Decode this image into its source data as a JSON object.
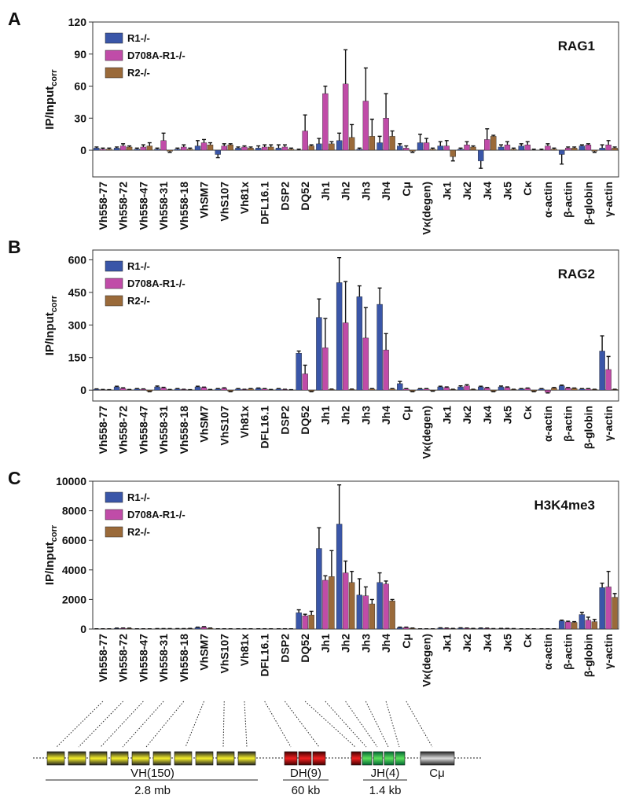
{
  "chart_data": [
    {
      "type": "bar",
      "panel": "A",
      "title": "RAG1",
      "ylabel": "IP/Input",
      "ylabel_sub": "corr",
      "categories": [
        "Vh558-77",
        "Vh558-72",
        "Vh558-47",
        "Vh558-31",
        "Vh558-18",
        "VhSM7",
        "VhS107",
        "Vh81x",
        "DFL16.1",
        "DSP2",
        "DQ52",
        "Jh1",
        "Jh2",
        "Jh3",
        "Jh4",
        "Cμ",
        "Vκ(degen)",
        "Jκ1",
        "Jκ2",
        "Jκ4",
        "Jκ5",
        "Cκ",
        "α-actin",
        "β-actin",
        "β-globin",
        "γ-actin"
      ],
      "series": [
        {
          "name": "R1-/-",
          "color": "#3a56a8",
          "values": [
            2,
            2,
            1,
            1,
            1,
            4,
            -4,
            2,
            2,
            2,
            0,
            6,
            9,
            1,
            7,
            4,
            7,
            4,
            1,
            -10,
            3,
            4,
            0,
            -4,
            4,
            2
          ],
          "errors": [
            1,
            1,
            1,
            1,
            1,
            5,
            3,
            1,
            2,
            3,
            1,
            5,
            7,
            1,
            6,
            2,
            8,
            4,
            1,
            7,
            2,
            2,
            1,
            9,
            1,
            3
          ]
        },
        {
          "name": "D708A-R1-/-",
          "color": "#c04ca8",
          "values": [
            1,
            4,
            3,
            9,
            3,
            7,
            4,
            3,
            3,
            3,
            18,
            53,
            62,
            46,
            30,
            2,
            7,
            4,
            5,
            10,
            5,
            5,
            4,
            2,
            5,
            5
          ],
          "errors": [
            1,
            2,
            2,
            7,
            2,
            3,
            2,
            1,
            2,
            2,
            15,
            7,
            32,
            31,
            23,
            2,
            4,
            5,
            3,
            10,
            3,
            3,
            2,
            1,
            1,
            4
          ]
        },
        {
          "name": "R2-/-",
          "color": "#9a6a3a",
          "values": [
            1,
            3,
            4,
            -1,
            1,
            5,
            5,
            2,
            3,
            1,
            4,
            6,
            12,
            13,
            13,
            -1,
            1,
            -6,
            3,
            13,
            1,
            0,
            1,
            2,
            -1,
            2
          ],
          "errors": [
            1,
            1,
            3,
            1,
            1,
            2,
            1,
            1,
            2,
            1,
            1,
            2,
            12,
            16,
            5,
            1,
            1,
            4,
            1,
            1,
            1,
            1,
            1,
            1,
            1,
            1
          ]
        }
      ],
      "ylim": [
        -25,
        120
      ],
      "yticks": [
        0,
        30,
        60,
        90,
        120
      ]
    },
    {
      "type": "bar",
      "panel": "B",
      "title": "RAG2",
      "ylabel": "IP/Input",
      "ylabel_sub": "corr",
      "categories": [
        "Vh558-77",
        "Vh558-72",
        "Vh558-47",
        "Vh558-31",
        "Vh558-18",
        "VhSM7",
        "VhS107",
        "Vh81x",
        "DFL16.1",
        "DSP2",
        "DQ52",
        "Jh1",
        "Jh2",
        "Jh3",
        "Jh4",
        "Cμ",
        "Vκ(degen)",
        "Jκ1",
        "Jκ2",
        "Jκ4",
        "Jκ5",
        "Cκ",
        "α-actin",
        "β-actin",
        "β-globin",
        "γ-actin"
      ],
      "series": [
        {
          "name": "R1-/-",
          "color": "#3a56a8",
          "values": [
            4,
            15,
            5,
            15,
            5,
            15,
            5,
            5,
            8,
            5,
            170,
            335,
            495,
            430,
            395,
            30,
            5,
            15,
            15,
            15,
            15,
            5,
            5,
            20,
            5,
            180
          ],
          "errors": [
            2,
            3,
            2,
            4,
            2,
            3,
            2,
            2,
            2,
            2,
            10,
            85,
            115,
            50,
            75,
            10,
            2,
            3,
            5,
            3,
            4,
            2,
            2,
            3,
            2,
            70
          ]
        },
        {
          "name": "D708A-R1-/-",
          "color": "#c04ca8",
          "values": [
            2,
            8,
            4,
            10,
            3,
            12,
            8,
            3,
            5,
            3,
            75,
            195,
            310,
            240,
            185,
            5,
            5,
            12,
            20,
            10,
            12,
            8,
            -10,
            10,
            5,
            95
          ],
          "errors": [
            1,
            3,
            2,
            3,
            1,
            2,
            3,
            1,
            2,
            1,
            40,
            135,
            190,
            140,
            75,
            2,
            2,
            3,
            5,
            2,
            3,
            2,
            3,
            2,
            2,
            60
          ]
        },
        {
          "name": "R2-/-",
          "color": "#9a6a3a",
          "values": [
            1,
            2,
            -5,
            2,
            1,
            2,
            -5,
            6,
            2,
            1,
            -5,
            3,
            3,
            5,
            5,
            -5,
            -3,
            3,
            3,
            -5,
            3,
            -5,
            10,
            8,
            3,
            3
          ],
          "errors": [
            1,
            1,
            2,
            1,
            1,
            1,
            2,
            1,
            1,
            1,
            2,
            2,
            2,
            2,
            2,
            2,
            2,
            1,
            1,
            2,
            1,
            2,
            2,
            2,
            1,
            1
          ]
        }
      ],
      "ylim": [
        -50,
        645
      ],
      "yticks": [
        0,
        150,
        300,
        450,
        600
      ]
    },
    {
      "type": "bar",
      "panel": "C",
      "title": "H3K4me3",
      "ylabel": "IP/Input",
      "ylabel_sub": "corr",
      "categories": [
        "Vh558-77",
        "Vh558-72",
        "Vh558-47",
        "Vh558-31",
        "Vh558-18",
        "VhSM7",
        "VhS107",
        "Vh81x",
        "DFL16.1",
        "DSP2",
        "DQ52",
        "Jh1",
        "Jh2",
        "Jh3",
        "Jh4",
        "Cμ",
        "Vκ(degen)",
        "Jκ1",
        "Jκ2",
        "Jκ4",
        "Jκ5",
        "Cκ",
        "α-actin",
        "β-actin",
        "β-globin",
        "γ-actin"
      ],
      "series": [
        {
          "name": "R1-/-",
          "color": "#3a56a8",
          "values": [
            10,
            40,
            10,
            20,
            20,
            100,
            10,
            10,
            10,
            10,
            1100,
            5450,
            7100,
            2300,
            3150,
            100,
            10,
            60,
            60,
            50,
            30,
            10,
            10,
            550,
            980,
            2800
          ],
          "errors": [
            5,
            20,
            5,
            10,
            10,
            30,
            5,
            5,
            5,
            5,
            200,
            1400,
            2650,
            1100,
            650,
            30,
            5,
            20,
            20,
            20,
            10,
            5,
            5,
            50,
            150,
            300
          ]
        },
        {
          "name": "D708A-R1-/-",
          "color": "#c04ca8",
          "values": [
            10,
            50,
            10,
            20,
            20,
            130,
            10,
            10,
            10,
            10,
            900,
            3300,
            3800,
            2250,
            3050,
            100,
            10,
            50,
            50,
            40,
            30,
            10,
            10,
            480,
            600,
            2850
          ],
          "errors": [
            5,
            20,
            5,
            10,
            10,
            30,
            5,
            5,
            5,
            5,
            100,
            300,
            800,
            600,
            200,
            30,
            5,
            20,
            20,
            20,
            10,
            5,
            5,
            50,
            200,
            1050
          ]
        },
        {
          "name": "R2-/-",
          "color": "#9a6a3a",
          "values": [
            10,
            40,
            10,
            20,
            30,
            50,
            10,
            10,
            10,
            10,
            950,
            3550,
            3150,
            1700,
            1900,
            50,
            10,
            30,
            30,
            20,
            20,
            10,
            10,
            450,
            500,
            2150
          ],
          "errors": [
            5,
            20,
            5,
            10,
            10,
            20,
            5,
            5,
            5,
            5,
            250,
            1750,
            750,
            300,
            100,
            20,
            5,
            10,
            10,
            10,
            10,
            5,
            5,
            50,
            150,
            250
          ]
        }
      ],
      "ylim": [
        0,
        10000
      ],
      "yticks": [
        0,
        2000,
        4000,
        6000,
        8000,
        10000
      ]
    }
  ],
  "diagram": {
    "vh": "VH(150)",
    "dh": "DH(9)",
    "jh": "JH(4)",
    "cmu": "Cμ",
    "vh_size": "2.8 mb",
    "dh_size": "60 kb",
    "jh_size": "1.4 kb"
  }
}
